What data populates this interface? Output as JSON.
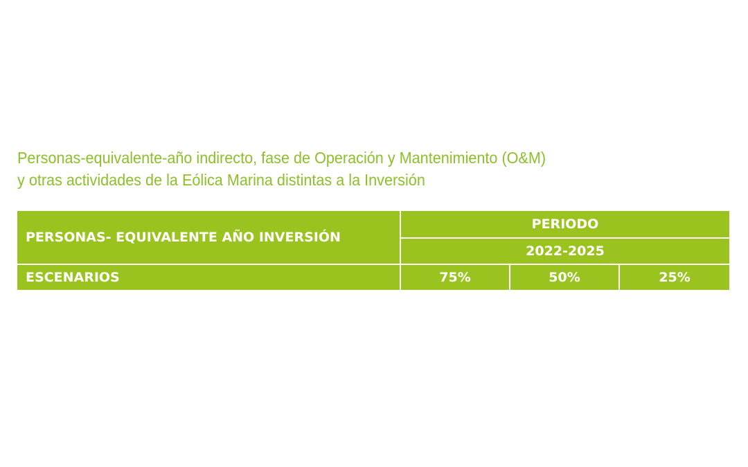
{
  "title": {
    "line1": "Personas-equivalente-año indirecto, fase de Operación y Mantenimiento (O&M)",
    "line2": "y otras actividades de la Eólica Marina distintas a la Inversión"
  },
  "table": {
    "header_label": "PERSONAS- EQUIVALENTE AÑO INVERSIÓN",
    "periodo_label": "PERIODO",
    "period_value": "2022-2025",
    "escenarios_label": "ESCENARIOS",
    "scenarios": [
      "75%",
      "50%",
      "25%"
    ]
  },
  "colors": {
    "title": "#8cbf2a",
    "table_bg": "#9bc31f",
    "table_text": "#ffffff"
  }
}
